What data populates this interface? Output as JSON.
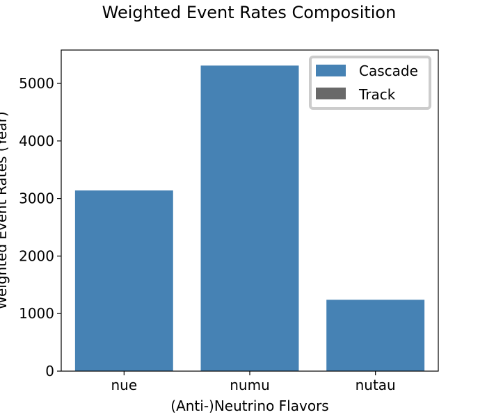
{
  "chart_data": {
    "type": "bar",
    "title": "Weighted Event Rates Composition",
    "xlabel": "(Anti-)Neutrino Flavors",
    "ylabel": "Weighted Event Rates (Year)",
    "categories": [
      "nue",
      "numu",
      "nutau"
    ],
    "series": [
      {
        "name": "Cascade",
        "color": "#4682b4",
        "values": [
          3140,
          5310,
          1240
        ]
      },
      {
        "name": "Track",
        "color": "#696969",
        "values": [
          0,
          0,
          0
        ]
      }
    ],
    "ylim": [
      0,
      5580
    ],
    "yticks": [
      0,
      1000,
      2000,
      3000,
      4000,
      5000
    ],
    "grid": false,
    "legend_position": "top-right"
  }
}
